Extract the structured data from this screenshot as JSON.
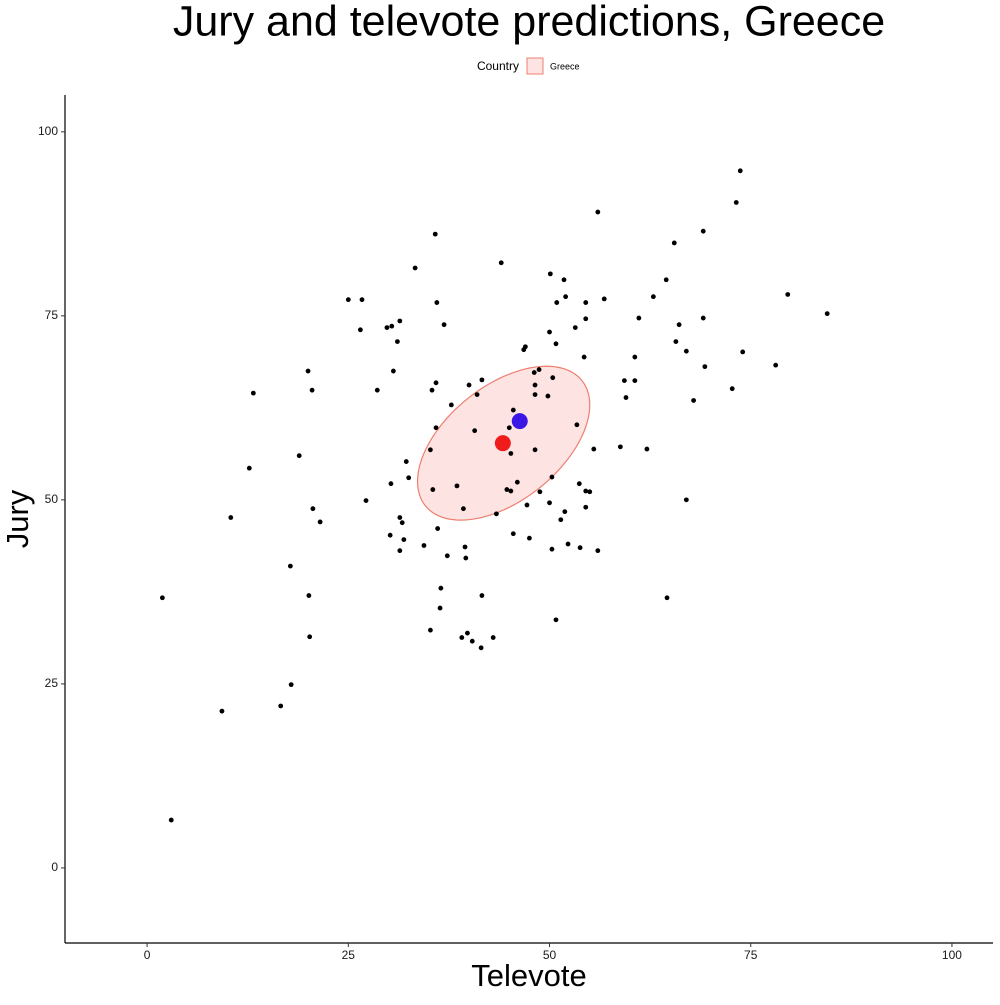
{
  "chart_data": {
    "type": "scatter",
    "title": "Jury and televote predictions, Greece",
    "x_label": "Televote",
    "y_label": "Jury",
    "legend_title": "Country",
    "legend_position": "top",
    "grid": false,
    "xlim": [
      -10.2,
      105.1
    ],
    "ylim": [
      -10.2,
      105
    ],
    "xticks": [
      0,
      25,
      50,
      75,
      100
    ],
    "yticks": [
      0,
      25,
      50,
      75,
      100
    ],
    "points": {
      "color": "#000000",
      "x": [
        1.9,
        3.0,
        9.3,
        10.4,
        12.7,
        13.2,
        16.6,
        17.9,
        17.8,
        18.9,
        20.0,
        20.1,
        20.2,
        20.5,
        20.6,
        21.5,
        25.0,
        26.7,
        26.5,
        27.2,
        28.6,
        29.8,
        30.4,
        30.2,
        30.3,
        30.6,
        31.1,
        31.4,
        31.4,
        31.7,
        31.4,
        31.9,
        32.2,
        32.5,
        33.3,
        34.4,
        35.2,
        35.2,
        35.4,
        35.5,
        35.8,
        35.9,
        35.9,
        36.0,
        36.1,
        36.4,
        36.5,
        36.9,
        37.3,
        37.8,
        38.5,
        39.1,
        39.3,
        39.5,
        39.6,
        39.8,
        40.0,
        40.4,
        40.7,
        41.0,
        41.5,
        41.6,
        41.6,
        43.0,
        43.4,
        44.0,
        44.7,
        45.0,
        45.2,
        45.2,
        45.5,
        45.5,
        45.7,
        46.0,
        46.8,
        47.0,
        47.2,
        47.5,
        48.1,
        48.2,
        48.2,
        48.2,
        48.7,
        48.8,
        50.0,
        49.8,
        50.0,
        50.1,
        50.3,
        50.3,
        50.4,
        50.8,
        50.8,
        50.9,
        51.4,
        51.8,
        51.9,
        52.0,
        52.3,
        53.2,
        53.4,
        53.7,
        53.8,
        54.3,
        54.5,
        54.5,
        54.5,
        54.5,
        55.0,
        55.5,
        56.0,
        56.0,
        56.8,
        58.8,
        59.3,
        59.5,
        60.6,
        60.6,
        61.1,
        62.1,
        62.9,
        64.5,
        64.6,
        65.5,
        65.7,
        66.1,
        67.0,
        67.0,
        67.9,
        69.1,
        69.1,
        69.3,
        72.7,
        73.2,
        73.7,
        74.0,
        78.1,
        79.6,
        84.5
      ],
      "y": [
        36.7,
        6.5,
        21.3,
        47.6,
        54.3,
        64.5,
        22.0,
        24.9,
        41.0,
        56.0,
        67.5,
        37.0,
        31.4,
        64.9,
        48.8,
        47.0,
        77.2,
        77.2,
        73.1,
        49.9,
        64.9,
        73.4,
        73.6,
        45.2,
        52.2,
        67.5,
        71.5,
        74.3,
        47.6,
        46.9,
        43.1,
        44.6,
        55.2,
        53.0,
        81.5,
        43.8,
        32.3,
        56.8,
        64.9,
        51.4,
        86.1,
        65.9,
        59.8,
        76.8,
        46.1,
        35.3,
        38.0,
        73.8,
        42.4,
        62.9,
        51.9,
        31.3,
        48.8,
        43.6,
        42.1,
        31.9,
        65.6,
        30.8,
        59.4,
        64.3,
        29.9,
        37.0,
        66.3,
        31.3,
        48.1,
        82.2,
        51.4,
        59.8,
        56.3,
        51.2,
        62.2,
        45.4,
        61.0,
        52.4,
        70.4,
        70.8,
        49.3,
        44.8,
        67.3,
        65.6,
        56.8,
        64.3,
        67.7,
        51.1,
        49.6,
        64.1,
        72.8,
        80.7,
        53.1,
        43.3,
        66.6,
        71.2,
        33.7,
        76.8,
        47.3,
        79.9,
        48.4,
        77.6,
        44.0,
        73.4,
        60.2,
        52.2,
        43.5,
        69.4,
        74.6,
        76.8,
        51.2,
        49.0,
        51.1,
        56.9,
        89.1,
        43.1,
        77.3,
        57.2,
        66.2,
        63.9,
        66.2,
        69.4,
        74.7,
        56.9,
        77.6,
        79.9,
        36.7,
        84.9,
        71.5,
        73.8,
        70.2,
        50.0,
        63.5,
        86.5,
        74.7,
        68.1,
        65.1,
        90.4,
        94.7,
        70.1,
        68.3,
        77.9,
        75.3
      ]
    },
    "ellipse": {
      "name": "Greece",
      "fill": "#fde4e3",
      "stroke": "#ee7f6f",
      "center": [
        44.3,
        57.7
      ],
      "x_radius": 10.7,
      "y_radius": 10.45,
      "phase": 1.05
    },
    "highlights": [
      {
        "x": 44.2,
        "y": 57.7,
        "color": "#f01b1b"
      },
      {
        "x": 46.3,
        "y": 60.7,
        "color": "#3a17e4"
      }
    ]
  }
}
